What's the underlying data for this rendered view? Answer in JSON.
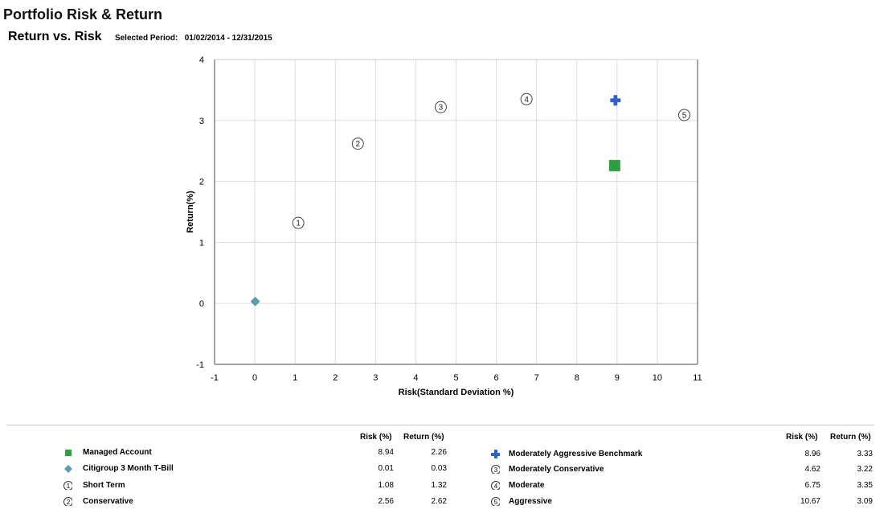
{
  "page": {
    "title": "Portfolio Risk & Return",
    "subtitle": "Return vs. Risk",
    "period_label": "Selected Period:",
    "period_value": "01/02/2014  -  12/31/2015"
  },
  "legend": {
    "risk_header": "Risk (%)",
    "return_header": "Return (%)",
    "left": [
      {
        "name": "Managed Account",
        "risk": "8.94",
        "return": "2.26",
        "icon": "green-square"
      },
      {
        "name": "Citigroup 3 Month T-Bill",
        "risk": "0.01",
        "return": "0.03",
        "icon": "teal-diamond"
      },
      {
        "name": "Short Term",
        "risk": "1.08",
        "return": "1.32",
        "icon": "circled-1"
      },
      {
        "name": "Conservative",
        "risk": "2.56",
        "return": "2.62",
        "icon": "circled-2"
      }
    ],
    "right": [
      {
        "name": "Moderately Aggressive Benchmark",
        "risk": "8.96",
        "return": "3.33",
        "icon": "blue-cross"
      },
      {
        "name": "Moderately Conservative",
        "risk": "4.62",
        "return": "3.22",
        "icon": "circled-3"
      },
      {
        "name": "Moderate",
        "risk": "6.75",
        "return": "3.35",
        "icon": "circled-4"
      },
      {
        "name": "Aggressive",
        "risk": "10.67",
        "return": "3.09",
        "icon": "circled-5"
      }
    ]
  },
  "chart_data": {
    "type": "scatter",
    "title": "Return vs. Risk",
    "xlabel": "Risk(Standard Deviation %)",
    "ylabel": "Return(%)",
    "xlim": [
      -1,
      11
    ],
    "ylim": [
      -1,
      4
    ],
    "x_ticks": [
      "-1",
      "0",
      "1",
      "2",
      "3",
      "4",
      "5",
      "6",
      "7",
      "8",
      "9",
      "10",
      "11"
    ],
    "y_ticks": [
      "-1",
      "0",
      "1",
      "2",
      "3",
      "4"
    ],
    "grid": true,
    "colors": {
      "managed": "#2e9e3e",
      "tbill": "#5b9fae",
      "benchmark": "#2a64c8",
      "circle": "#444444"
    },
    "series": [
      {
        "name": "Managed Account",
        "marker": "square",
        "x": 8.94,
        "y": 2.26
      },
      {
        "name": "Citigroup 3 Month T-Bill",
        "marker": "diamond",
        "x": 0.01,
        "y": 0.03
      },
      {
        "name": "Short Term",
        "marker": "circled-number",
        "label": "1",
        "x": 1.08,
        "y": 1.32
      },
      {
        "name": "Conservative",
        "marker": "circled-number",
        "label": "2",
        "x": 2.56,
        "y": 2.62
      },
      {
        "name": "Moderately Aggressive Benchmark",
        "marker": "cross",
        "x": 8.96,
        "y": 3.33
      },
      {
        "name": "Moderately Conservative",
        "marker": "circled-number",
        "label": "3",
        "x": 4.62,
        "y": 3.22
      },
      {
        "name": "Moderate",
        "marker": "circled-number",
        "label": "4",
        "x": 6.75,
        "y": 3.35
      },
      {
        "name": "Aggressive",
        "marker": "circled-number",
        "label": "5",
        "x": 10.67,
        "y": 3.09
      }
    ]
  }
}
